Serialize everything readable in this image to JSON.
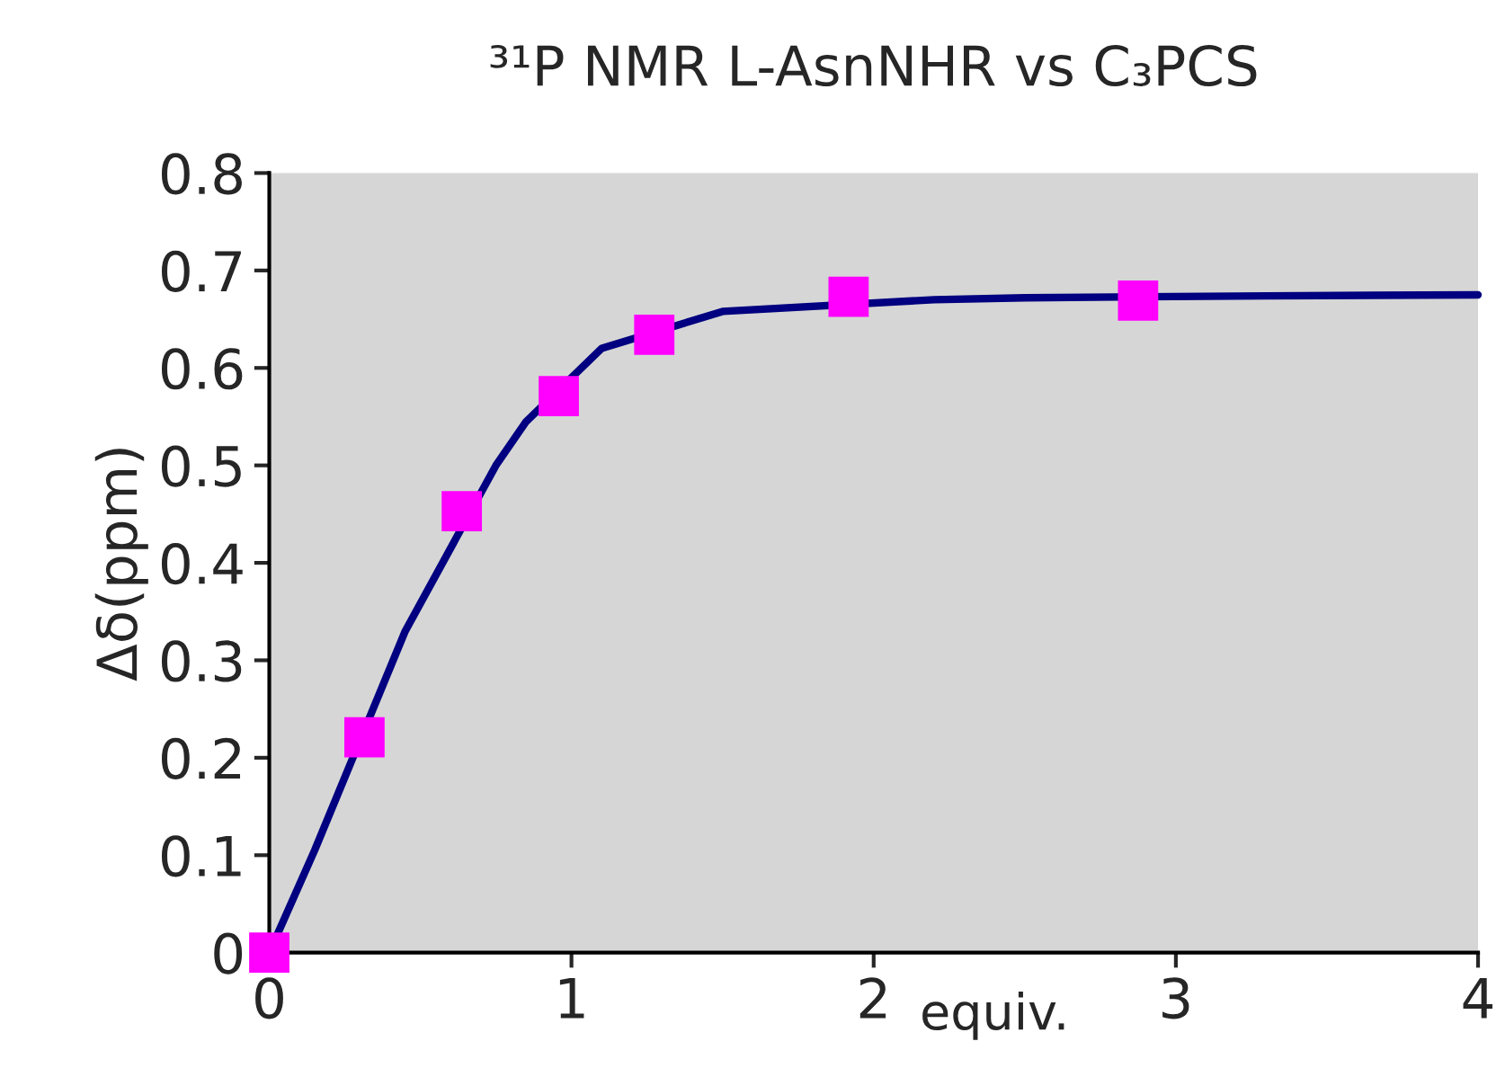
{
  "chart_data": {
    "type": "scatter",
    "title": "³¹P NMR L-AsnNHR vs C₃PCS",
    "xlabel": "equiv.",
    "ylabel": "Δδ(ppm)",
    "xlim": [
      0,
      4
    ],
    "xticks": [
      0,
      1,
      2,
      3,
      4
    ],
    "ylim": [
      0,
      0.8
    ],
    "yticks": [
      0,
      0.1,
      0.2,
      0.3,
      0.4,
      0.5,
      0.6,
      0.7,
      0.8
    ],
    "grid": false,
    "legend": false,
    "series": [
      {
        "type": "line",
        "color": "#000080",
        "marker": "none",
        "line_style": "solid",
        "x": [
          0,
          0.15,
          0.45,
          0.75,
          0.85,
          1.1,
          1.5,
          2.2,
          2.5,
          3.3,
          4
        ],
        "values": [
          0,
          0.105,
          0.33,
          0.5,
          0.545,
          0.62,
          0.658,
          0.67,
          0.672,
          0.674,
          0.675
        ]
      },
      {
        "color": "#ff00ff",
        "marker": "square",
        "x": [
          0,
          0.315,
          0.637,
          0.958,
          1.274,
          1.917,
          2.875
        ],
        "values": [
          0,
          0.221,
          0.453,
          0.571,
          0.634,
          0.673,
          0.669
        ]
      }
    ]
  }
}
